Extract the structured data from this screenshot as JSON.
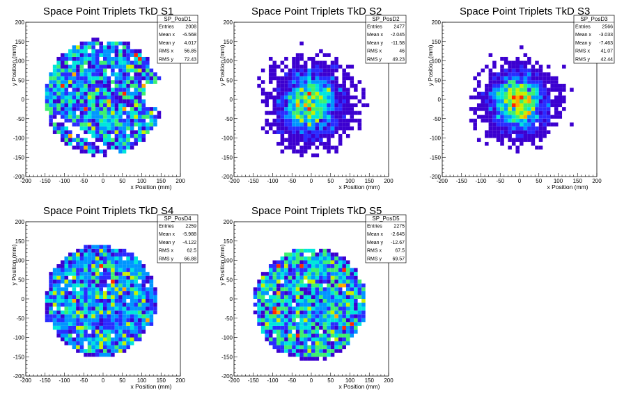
{
  "chart_data": [
    {
      "type": "heatmap",
      "title": "Space Point Triplets TkD S1",
      "xlabel": "x Position (mm)",
      "ylabel": "y Position (mm)",
      "xlim": [
        -200,
        200
      ],
      "ylim": [
        -200,
        200
      ],
      "xticks": [
        "-200",
        "-150",
        "-100",
        "-50",
        "0",
        "50",
        "100",
        "150",
        "200"
      ],
      "yticks": [
        "-200",
        "-150",
        "-100",
        "-50",
        "0",
        "50",
        "100",
        "150",
        "200"
      ],
      "grid": false,
      "stats": {
        "name": "SP_PosD1",
        "rows": [
          {
            "label": "Entries",
            "value": "2008"
          },
          {
            "label": "Mean x",
            "value": "-6.568"
          },
          {
            "label": "Mean y",
            "value": "4.017"
          },
          {
            "label": "RMS x",
            "value": "56.85"
          },
          {
            "label": "RMS y",
            "value": "72.43"
          }
        ]
      },
      "distribution": {
        "entries": 2008,
        "mean_x": -6.568,
        "mean_y": 4.017,
        "rms_x": 56.85,
        "rms_y": 72.43,
        "shape": "disk with gap",
        "radius": 150
      }
    },
    {
      "type": "heatmap",
      "title": "Space Point Triplets TkD S2",
      "xlabel": "x Position (mm)",
      "ylabel": "y Position (mm)",
      "xlim": [
        -200,
        200
      ],
      "ylim": [
        -200,
        200
      ],
      "xticks": [
        "-200",
        "-150",
        "-100",
        "-50",
        "0",
        "50",
        "100",
        "150",
        "200"
      ],
      "yticks": [
        "-200",
        "-150",
        "-100",
        "-50",
        "0",
        "50",
        "100",
        "150",
        "200"
      ],
      "grid": false,
      "stats": {
        "name": "SP_PosD2",
        "rows": [
          {
            "label": "Entries",
            "value": "2477"
          },
          {
            "label": "Mean x",
            "value": "-2.045"
          },
          {
            "label": "Mean y",
            "value": "-11.58"
          },
          {
            "label": "RMS x",
            "value": "46"
          },
          {
            "label": "RMS y",
            "value": "49.23"
          }
        ]
      },
      "distribution": {
        "entries": 2477,
        "mean_x": -2.045,
        "mean_y": -11.58,
        "rms_x": 46,
        "rms_y": 49.23,
        "shape": "disk",
        "radius": 150
      }
    },
    {
      "type": "heatmap",
      "title": "Space Point Triplets TkD S3",
      "xlabel": "x Position (mm)",
      "ylabel": "y Position (mm)",
      "xlim": [
        -200,
        200
      ],
      "ylim": [
        -200,
        200
      ],
      "xticks": [
        "-200",
        "-150",
        "-100",
        "-50",
        "0",
        "50",
        "100",
        "150",
        "200"
      ],
      "yticks": [
        "-200",
        "-150",
        "-100",
        "-50",
        "0",
        "50",
        "100",
        "150",
        "200"
      ],
      "grid": false,
      "stats": {
        "name": "SP_PosD3",
        "rows": [
          {
            "label": "Entries",
            "value": "2566"
          },
          {
            "label": "Mean x",
            "value": "-3.033"
          },
          {
            "label": "Mean y",
            "value": "-7.463"
          },
          {
            "label": "RMS x",
            "value": "41.07"
          },
          {
            "label": "RMS y",
            "value": "42.44"
          }
        ]
      },
      "distribution": {
        "entries": 2566,
        "mean_x": -3.033,
        "mean_y": -7.463,
        "rms_x": 41.07,
        "rms_y": 42.44,
        "shape": "disk",
        "radius": 150
      }
    },
    {
      "type": "heatmap",
      "title": "Space Point Triplets TkD S4",
      "xlabel": "x Position (mm)",
      "ylabel": "y Position (mm)",
      "xlim": [
        -200,
        200
      ],
      "ylim": [
        -200,
        200
      ],
      "xticks": [
        "-200",
        "-150",
        "-100",
        "-50",
        "0",
        "50",
        "100",
        "150",
        "200"
      ],
      "yticks": [
        "-200",
        "-150",
        "-100",
        "-50",
        "0",
        "50",
        "100",
        "150",
        "200"
      ],
      "grid": false,
      "stats": {
        "name": "SP_PosD4",
        "rows": [
          {
            "label": "Entries",
            "value": "2259"
          },
          {
            "label": "Mean x",
            "value": "-5.988"
          },
          {
            "label": "Mean y",
            "value": "-4.122"
          },
          {
            "label": "RMS x",
            "value": "62.5"
          },
          {
            "label": "RMS y",
            "value": "66.88"
          }
        ]
      },
      "distribution": {
        "entries": 2259,
        "mean_x": -5.988,
        "mean_y": -4.122,
        "rms_x": 62.5,
        "rms_y": 66.88,
        "shape": "disk",
        "radius": 150
      }
    },
    {
      "type": "heatmap",
      "title": "Space Point Triplets TkD S5",
      "xlabel": "x Position (mm)",
      "ylabel": "y Position (mm)",
      "xlim": [
        -200,
        200
      ],
      "ylim": [
        -200,
        200
      ],
      "xticks": [
        "-200",
        "-150",
        "-100",
        "-50",
        "0",
        "50",
        "100",
        "150",
        "200"
      ],
      "yticks": [
        "-200",
        "-150",
        "-100",
        "-50",
        "0",
        "50",
        "100",
        "150",
        "200"
      ],
      "grid": false,
      "stats": {
        "name": "SP_PosD5",
        "rows": [
          {
            "label": "Entries",
            "value": "2275"
          },
          {
            "label": "Mean x",
            "value": "-2.645"
          },
          {
            "label": "Mean y",
            "value": "-12.67"
          },
          {
            "label": "RMS x",
            "value": "67.5"
          },
          {
            "label": "RMS y",
            "value": "69.57"
          }
        ]
      },
      "distribution": {
        "entries": 2275,
        "mean_x": -2.645,
        "mean_y": -12.67,
        "rms_x": 67.5,
        "rms_y": 69.57,
        "shape": "disk",
        "radius": 150
      }
    }
  ],
  "palette": [
    "#3c00d0",
    "#2a2cff",
    "#0096ff",
    "#00e6dc",
    "#3cf070",
    "#c8f000",
    "#ffaa00",
    "#ff2a00"
  ],
  "colors": {
    "background": "#ffffff",
    "frame": "#000000"
  }
}
